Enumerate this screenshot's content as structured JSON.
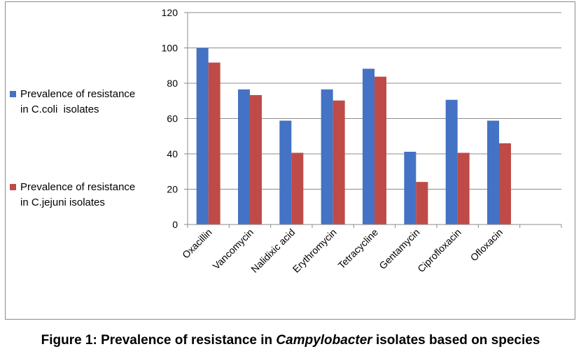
{
  "chart_data": {
    "type": "bar",
    "categories": [
      "Oxacillin",
      "Vancomycin",
      "Nalidixic acid",
      "Erythromycin",
      "Tetracycline",
      "Gentamycin",
      "Ciprofloxacin",
      "Ofloxacin",
      ""
    ],
    "series": [
      {
        "name": "Prevalence of resistance in C.coli  isolates",
        "name_lines": [
          "Prevalence of resistance",
          "in C.coli  isolates"
        ],
        "color": "#4472c4",
        "values": [
          100,
          76.5,
          58.8,
          76.5,
          88.2,
          41.2,
          70.6,
          58.8,
          null
        ]
      },
      {
        "name": "Prevalence of resistance in C.jejuni isolates",
        "name_lines": [
          "Prevalence of resistance",
          "in C.jejuni isolates"
        ],
        "color": "#be4b48",
        "values": [
          91.7,
          73.3,
          40.6,
          70.2,
          83.7,
          24.1,
          40.6,
          46.0,
          null
        ]
      }
    ],
    "ylim": [
      0,
      120
    ],
    "yticks": [
      0,
      20,
      40,
      60,
      80,
      100,
      120
    ],
    "grid": true,
    "legend_position": "left"
  },
  "caption": {
    "prefix": "Figure 1: Prevalence of resistance in ",
    "italic": "Campylobacter",
    "suffix": " isolates based on species"
  }
}
